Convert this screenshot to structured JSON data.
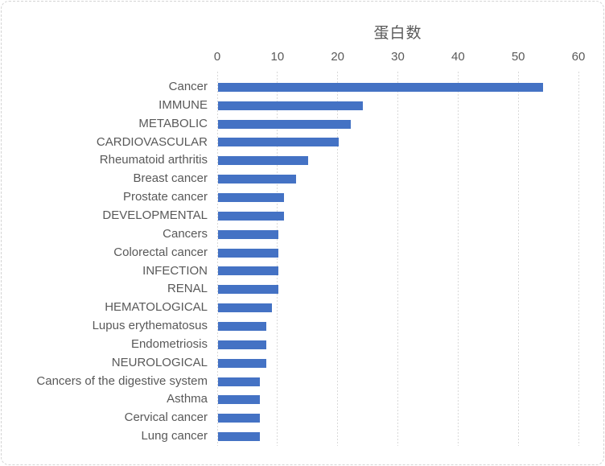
{
  "chart_data": {
    "type": "bar",
    "orientation": "horizontal",
    "title": "蛋白数",
    "categories": [
      "Cancer",
      "IMMUNE",
      "METABOLIC",
      "CARDIOVASCULAR",
      "Rheumatoid arthritis",
      "Breast cancer",
      "Prostate cancer",
      "DEVELOPMENTAL",
      "Cancers",
      "Colorectal cancer",
      "INFECTION",
      "RENAL",
      "HEMATOLOGICAL",
      "Lupus erythematosus",
      "Endometriosis",
      "NEUROLOGICAL",
      "Cancers of the digestive system",
      "Asthma",
      "Cervical cancer",
      "Lung cancer"
    ],
    "values": [
      54,
      24,
      22,
      20,
      15,
      13,
      11,
      11,
      10,
      10,
      10,
      10,
      9,
      8,
      8,
      8,
      7,
      7,
      7,
      7
    ],
    "xlabel": "",
    "ylabel": "",
    "xlim": [
      0,
      60
    ],
    "x_ticks": [
      0,
      10,
      20,
      30,
      40,
      50,
      60
    ],
    "tick_position": "top",
    "grid": "vertical-dashed",
    "legend": "none",
    "bar_color": "#4472C4",
    "text_color": "#595959",
    "gridline_color": "#D9D9D9",
    "border_color": "#D9D9D9",
    "background": "#FFFFFF"
  }
}
